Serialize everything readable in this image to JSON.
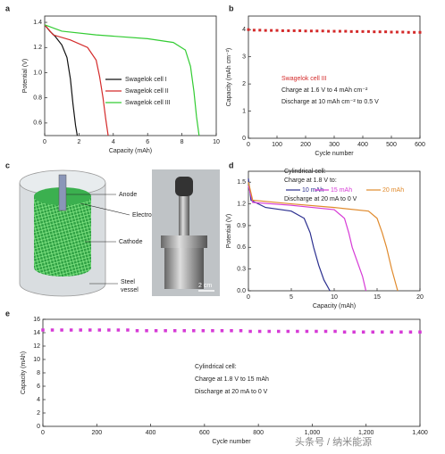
{
  "chart_data": [
    {
      "type": "line",
      "panel": "a",
      "xlabel": "Capacity (mAh)",
      "ylabel": "Potential (V)",
      "xlim": [
        0,
        10
      ],
      "xticks": [
        0,
        2,
        4,
        6,
        8,
        10
      ],
      "ylim": [
        0.5,
        1.45
      ],
      "yticks": [
        0.6,
        0.8,
        {
          "value": 1,
          "label": "1.0"
        },
        1.2,
        1.4
      ],
      "series": [
        {
          "name": "Swagelok cell I",
          "color": "#111111",
          "x": [
            0,
            0.3,
            0.6,
            1.0,
            1.3,
            1.5,
            1.65,
            1.8,
            1.9
          ],
          "values": [
            1.38,
            1.33,
            1.29,
            1.22,
            1.12,
            0.95,
            0.75,
            0.58,
            0.5
          ]
        },
        {
          "name": "Swagelok cell II",
          "color": "#d42a2a",
          "x": [
            0,
            0.5,
            1.5,
            2.5,
            3.0,
            3.2,
            3.4,
            3.55,
            3.7
          ],
          "values": [
            1.38,
            1.3,
            1.26,
            1.2,
            1.1,
            0.97,
            0.8,
            0.64,
            0.5
          ]
        },
        {
          "name": "Swagelok cell III",
          "color": "#33cc33",
          "x": [
            0,
            1,
            3,
            6,
            7.5,
            8.2,
            8.5,
            8.7,
            8.85,
            9.0
          ],
          "values": [
            1.38,
            1.33,
            1.3,
            1.27,
            1.24,
            1.18,
            1.05,
            0.85,
            0.65,
            0.5
          ]
        }
      ]
    },
    {
      "type": "scatter",
      "panel": "b",
      "xlabel": "Cycle number",
      "ylabel": "Capacity (mAh cm⁻²)",
      "xlim": [
        0,
        600
      ],
      "xticks": [
        0,
        100,
        200,
        300,
        400,
        500,
        600
      ],
      "ylim": [
        0,
        4.5
      ],
      "yticks": [
        0,
        1,
        2,
        3,
        4
      ],
      "annotations": [
        "Charge at 1.6 V to 4 mAh cm⁻²",
        "Discharge at 10 mAh cm⁻² to 0.5 V"
      ],
      "x": [
        0,
        20,
        40,
        60,
        80,
        100,
        120,
        140,
        160,
        180,
        200,
        220,
        240,
        260,
        280,
        300,
        320,
        340,
        360,
        380,
        400,
        420,
        440,
        460,
        480,
        500,
        520,
        540,
        560,
        580,
        600
      ],
      "series": [
        {
          "name": "Swagelok cell III",
          "color": "#d42a2a",
          "values": [
            4.0,
            3.98,
            3.98,
            3.97,
            3.97,
            3.97,
            3.96,
            3.96,
            3.96,
            3.96,
            3.95,
            3.95,
            3.95,
            3.95,
            3.94,
            3.94,
            3.94,
            3.94,
            3.93,
            3.93,
            3.93,
            3.93,
            3.92,
            3.92,
            3.92,
            3.91,
            3.91,
            3.91,
            3.9,
            3.9,
            3.9
          ]
        }
      ]
    },
    {
      "type": "line",
      "panel": "d",
      "xlabel": "Capacity (mAh)",
      "ylabel": "Potential (V)",
      "xlim": [
        0,
        20
      ],
      "xticks": [
        0,
        5,
        10,
        15,
        20
      ],
      "ylim": [
        0,
        1.65
      ],
      "yticks": [
        {
          "value": 0,
          "label": "0.0"
        },
        0.3,
        0.6,
        0.9,
        1.2,
        1.5
      ],
      "annotations": [
        "Cylindrical cell:",
        "Charge at 1.8 V to:",
        "Discharge at 20 mA to 0 V"
      ],
      "series": [
        {
          "name": "10 mAh",
          "color": "#2b2f8f",
          "x": [
            0,
            0.3,
            2,
            5,
            6.5,
            7.2,
            7.6,
            8.2,
            8.8,
            9.5
          ],
          "values": [
            1.55,
            1.25,
            1.15,
            1.1,
            1.0,
            0.8,
            0.6,
            0.35,
            0.15,
            0
          ]
        },
        {
          "name": "15 mAh",
          "color": "#d63ad6",
          "x": [
            0,
            0.5,
            5,
            10,
            11.2,
            11.7,
            12.1,
            12.7,
            13.3,
            13.7
          ],
          "values": [
            1.45,
            1.22,
            1.18,
            1.12,
            1.0,
            0.8,
            0.6,
            0.4,
            0.2,
            0
          ]
        },
        {
          "name": "20 mAh",
          "color": "#e08a2c",
          "x": [
            0,
            0.5,
            5,
            10,
            14,
            15,
            15.6,
            16.1,
            16.7,
            17.4
          ],
          "values": [
            1.5,
            1.25,
            1.2,
            1.15,
            1.1,
            1.0,
            0.8,
            0.6,
            0.3,
            0
          ]
        }
      ]
    },
    {
      "type": "scatter",
      "panel": "e",
      "xlabel": "Cycle number",
      "ylabel": "Capacity (mAh)",
      "xlim": [
        0,
        1400
      ],
      "xticks": [
        0,
        200,
        400,
        600,
        800,
        {
          "value": 1000,
          "label": "1,000"
        },
        {
          "value": 1200,
          "label": "1,200"
        },
        {
          "value": 1400,
          "label": "1,400"
        }
      ],
      "ylim": [
        0,
        16
      ],
      "yticks": [
        0,
        2,
        4,
        6,
        8,
        10,
        12,
        14,
        16
      ],
      "annotations": [
        "Cylindrical cell:",
        "Charge at 1.8 V to 15 mAh",
        "Discharge at 20 mA to 0 V"
      ],
      "x": [
        0,
        35,
        70,
        105,
        140,
        175,
        210,
        245,
        280,
        315,
        350,
        385,
        420,
        455,
        490,
        525,
        560,
        595,
        630,
        665,
        700,
        735,
        770,
        805,
        840,
        875,
        910,
        945,
        980,
        1015,
        1050,
        1085,
        1120,
        1155,
        1190,
        1225,
        1260,
        1295,
        1330,
        1365,
        1400
      ],
      "series": [
        {
          "name": "Cylindrical cell",
          "color": "#d63ad6",
          "values": [
            14.4,
            14.4,
            14.4,
            14.4,
            14.4,
            14.4,
            14.4,
            14.4,
            14.4,
            14.4,
            14.3,
            14.3,
            14.3,
            14.3,
            14.3,
            14.3,
            14.3,
            14.3,
            14.3,
            14.3,
            14.3,
            14.3,
            14.2,
            14.2,
            14.2,
            14.2,
            14.2,
            14.2,
            14.2,
            14.2,
            14.2,
            14.2,
            14.1,
            14.1,
            14.1,
            14.1,
            14.1,
            14.1,
            14.1,
            14.1,
            14.1
          ]
        }
      ]
    }
  ],
  "illustration": {
    "panel": "c",
    "labels": [
      "Anode",
      "Electrolyte",
      "Cathode",
      "Steel",
      "vessel"
    ],
    "scale_bar": "2 cm"
  },
  "watermark": "头条号 / 纳米能源"
}
